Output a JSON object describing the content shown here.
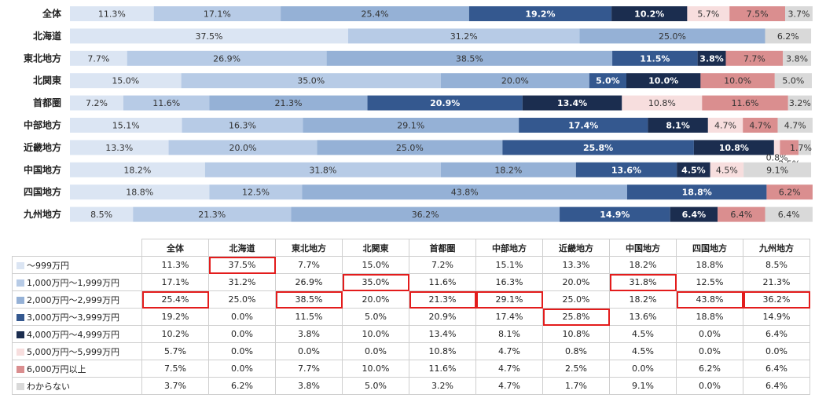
{
  "chart_data": {
    "type": "bar",
    "orientation": "horizontal",
    "stacked": "percent",
    "categories": [
      "全体",
      "北海道",
      "東北地方",
      "北関東",
      "首都圏",
      "中部地方",
      "近畿地方",
      "中国地方",
      "四国地方",
      "九州地方"
    ],
    "series": [
      {
        "name": "～999万円",
        "color": "#dbe5f3",
        "values": [
          11.3,
          37.5,
          7.7,
          15.0,
          7.2,
          15.1,
          13.3,
          18.2,
          18.8,
          8.5
        ]
      },
      {
        "name": "1,000万円～1,999万円",
        "color": "#b7cbe6",
        "values": [
          17.1,
          31.2,
          26.9,
          35.0,
          11.6,
          16.3,
          20.0,
          31.8,
          12.5,
          21.3
        ]
      },
      {
        "name": "2,000万円～2,999万円",
        "color": "#95b1d6",
        "values": [
          25.4,
          25.0,
          38.5,
          20.0,
          21.3,
          29.1,
          25.0,
          18.2,
          43.8,
          36.2
        ]
      },
      {
        "name": "3,000万円～3,999万円",
        "color": "#34588f",
        "values": [
          19.2,
          0.0,
          11.5,
          5.0,
          20.9,
          17.4,
          25.8,
          13.6,
          18.8,
          14.9
        ]
      },
      {
        "name": "4,000万円～4,999万円",
        "color": "#1b2d4f",
        "values": [
          10.2,
          0.0,
          3.8,
          10.0,
          13.4,
          8.1,
          10.8,
          4.5,
          0.0,
          6.4
        ]
      },
      {
        "name": "5,000万円～5,999万円",
        "color": "#f7dede",
        "values": [
          5.7,
          0.0,
          0.0,
          0.0,
          10.8,
          4.7,
          0.8,
          4.5,
          0.0,
          0.0
        ]
      },
      {
        "name": "6,000万円以上",
        "color": "#da8e8f",
        "values": [
          7.5,
          0.0,
          7.7,
          10.0,
          11.6,
          4.7,
          2.5,
          0.0,
          6.2,
          6.4
        ]
      },
      {
        "name": "わからない",
        "color": "#d9d9d9",
        "values": [
          3.7,
          6.2,
          3.8,
          5.0,
          3.2,
          4.7,
          1.7,
          9.1,
          0.0,
          6.4
        ]
      }
    ],
    "value_suffix": "%",
    "highlighted_cells": [
      {
        "series": 0,
        "category": 1
      },
      {
        "series": 1,
        "category": 3
      },
      {
        "series": 1,
        "category": 7
      },
      {
        "series": 2,
        "category": 0
      },
      {
        "series": 2,
        "category": 2
      },
      {
        "series": 2,
        "category": 4
      },
      {
        "series": 2,
        "category": 5
      },
      {
        "series": 2,
        "category": 8
      },
      {
        "series": 2,
        "category": 9
      },
      {
        "series": 3,
        "category": 6
      }
    ],
    "highlight_color": "#e31c1c",
    "legend": "table-below"
  }
}
